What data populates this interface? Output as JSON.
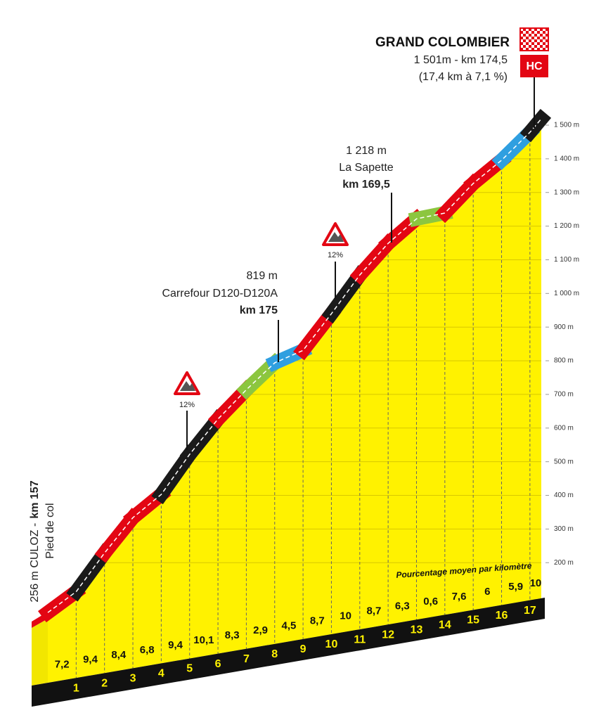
{
  "chart_data": {
    "type": "area",
    "title": "GRAND COLOMBIER",
    "subtitle": [
      "1 501m - km 174,5",
      "(17,4 km à 7,1 %)"
    ],
    "category_badge": "HC",
    "start_label": {
      "place": "256 m CULOZ -",
      "km": "km 157",
      "note": "Pied de col"
    },
    "annotations": [
      {
        "lines": [
          "1 218 m",
          "La Sapette"
        ],
        "km": "km 169,5"
      },
      {
        "lines": [
          "819 m",
          "Carrefour D120-D120A"
        ],
        "km": "km 175"
      }
    ],
    "warnings": [
      "12%",
      "12%"
    ],
    "gradient_note": "Pourcentage moyen par kilomètre",
    "x": [
      0,
      1,
      2,
      3,
      4,
      5,
      6,
      7,
      8,
      9,
      10,
      11,
      12,
      13,
      14,
      15,
      16,
      17,
      17.4
    ],
    "values": [
      33,
      95,
      210,
      315,
      384,
      503,
      608,
      695,
      775,
      812,
      921,
      1036,
      1130,
      1203,
      1220,
      1308,
      1377,
      1460,
      1500
    ],
    "gradients": [
      7.2,
      9.4,
      8.4,
      6.8,
      9.4,
      10.1,
      8.3,
      2.9,
      4.5,
      8.7,
      10,
      8.7,
      6.3,
      0.6,
      7.6,
      6,
      5.9,
      10
    ],
    "gradient_labels": [
      "7,2",
      "9,4",
      "8,4",
      "6,8",
      "9,4",
      "10,1",
      "8,3",
      "2,9",
      "4,5",
      "8,7",
      "10",
      "8,7",
      "6,3",
      "0,6",
      "7,6",
      "6",
      "5,9",
      "10"
    ],
    "segment_colors": [
      "#e30613",
      "#1a1a1a",
      "#e30613",
      "#e30613",
      "#1a1a1a",
      "#1a1a1a",
      "#e30613",
      "#8cc63f",
      "#2f9fe0",
      "#e30613",
      "#1a1a1a",
      "#e30613",
      "#e30613",
      "#8cc63f",
      "#e30613",
      "#e30613",
      "#2f9fe0",
      "#1a1a1a"
    ],
    "fill_color": "#fff200",
    "xlim": [
      0,
      17.4
    ],
    "xticks": [
      1,
      2,
      3,
      4,
      5,
      6,
      7,
      8,
      9,
      10,
      11,
      12,
      13,
      14,
      15,
      16,
      17
    ],
    "ylim": [
      0,
      1500
    ],
    "yticks": [
      {
        "value": 200,
        "label": "200 m"
      },
      {
        "value": 300,
        "label": "300 m"
      },
      {
        "value": 400,
        "label": "400 m"
      },
      {
        "value": 500,
        "label": "500 m"
      },
      {
        "value": 600,
        "label": "600 m"
      },
      {
        "value": 700,
        "label": "700 m"
      },
      {
        "value": 800,
        "label": "800 m"
      },
      {
        "value": 900,
        "label": "900 m"
      },
      {
        "value": 1000,
        "label": "1 000 m"
      },
      {
        "value": 1100,
        "label": "1 100 m"
      },
      {
        "value": 1200,
        "label": "1 200 m"
      },
      {
        "value": 1300,
        "label": "1 300 m"
      },
      {
        "value": 1400,
        "label": "1 400 m"
      },
      {
        "value": 1500,
        "label": "1 500 m"
      }
    ],
    "grid": true
  }
}
